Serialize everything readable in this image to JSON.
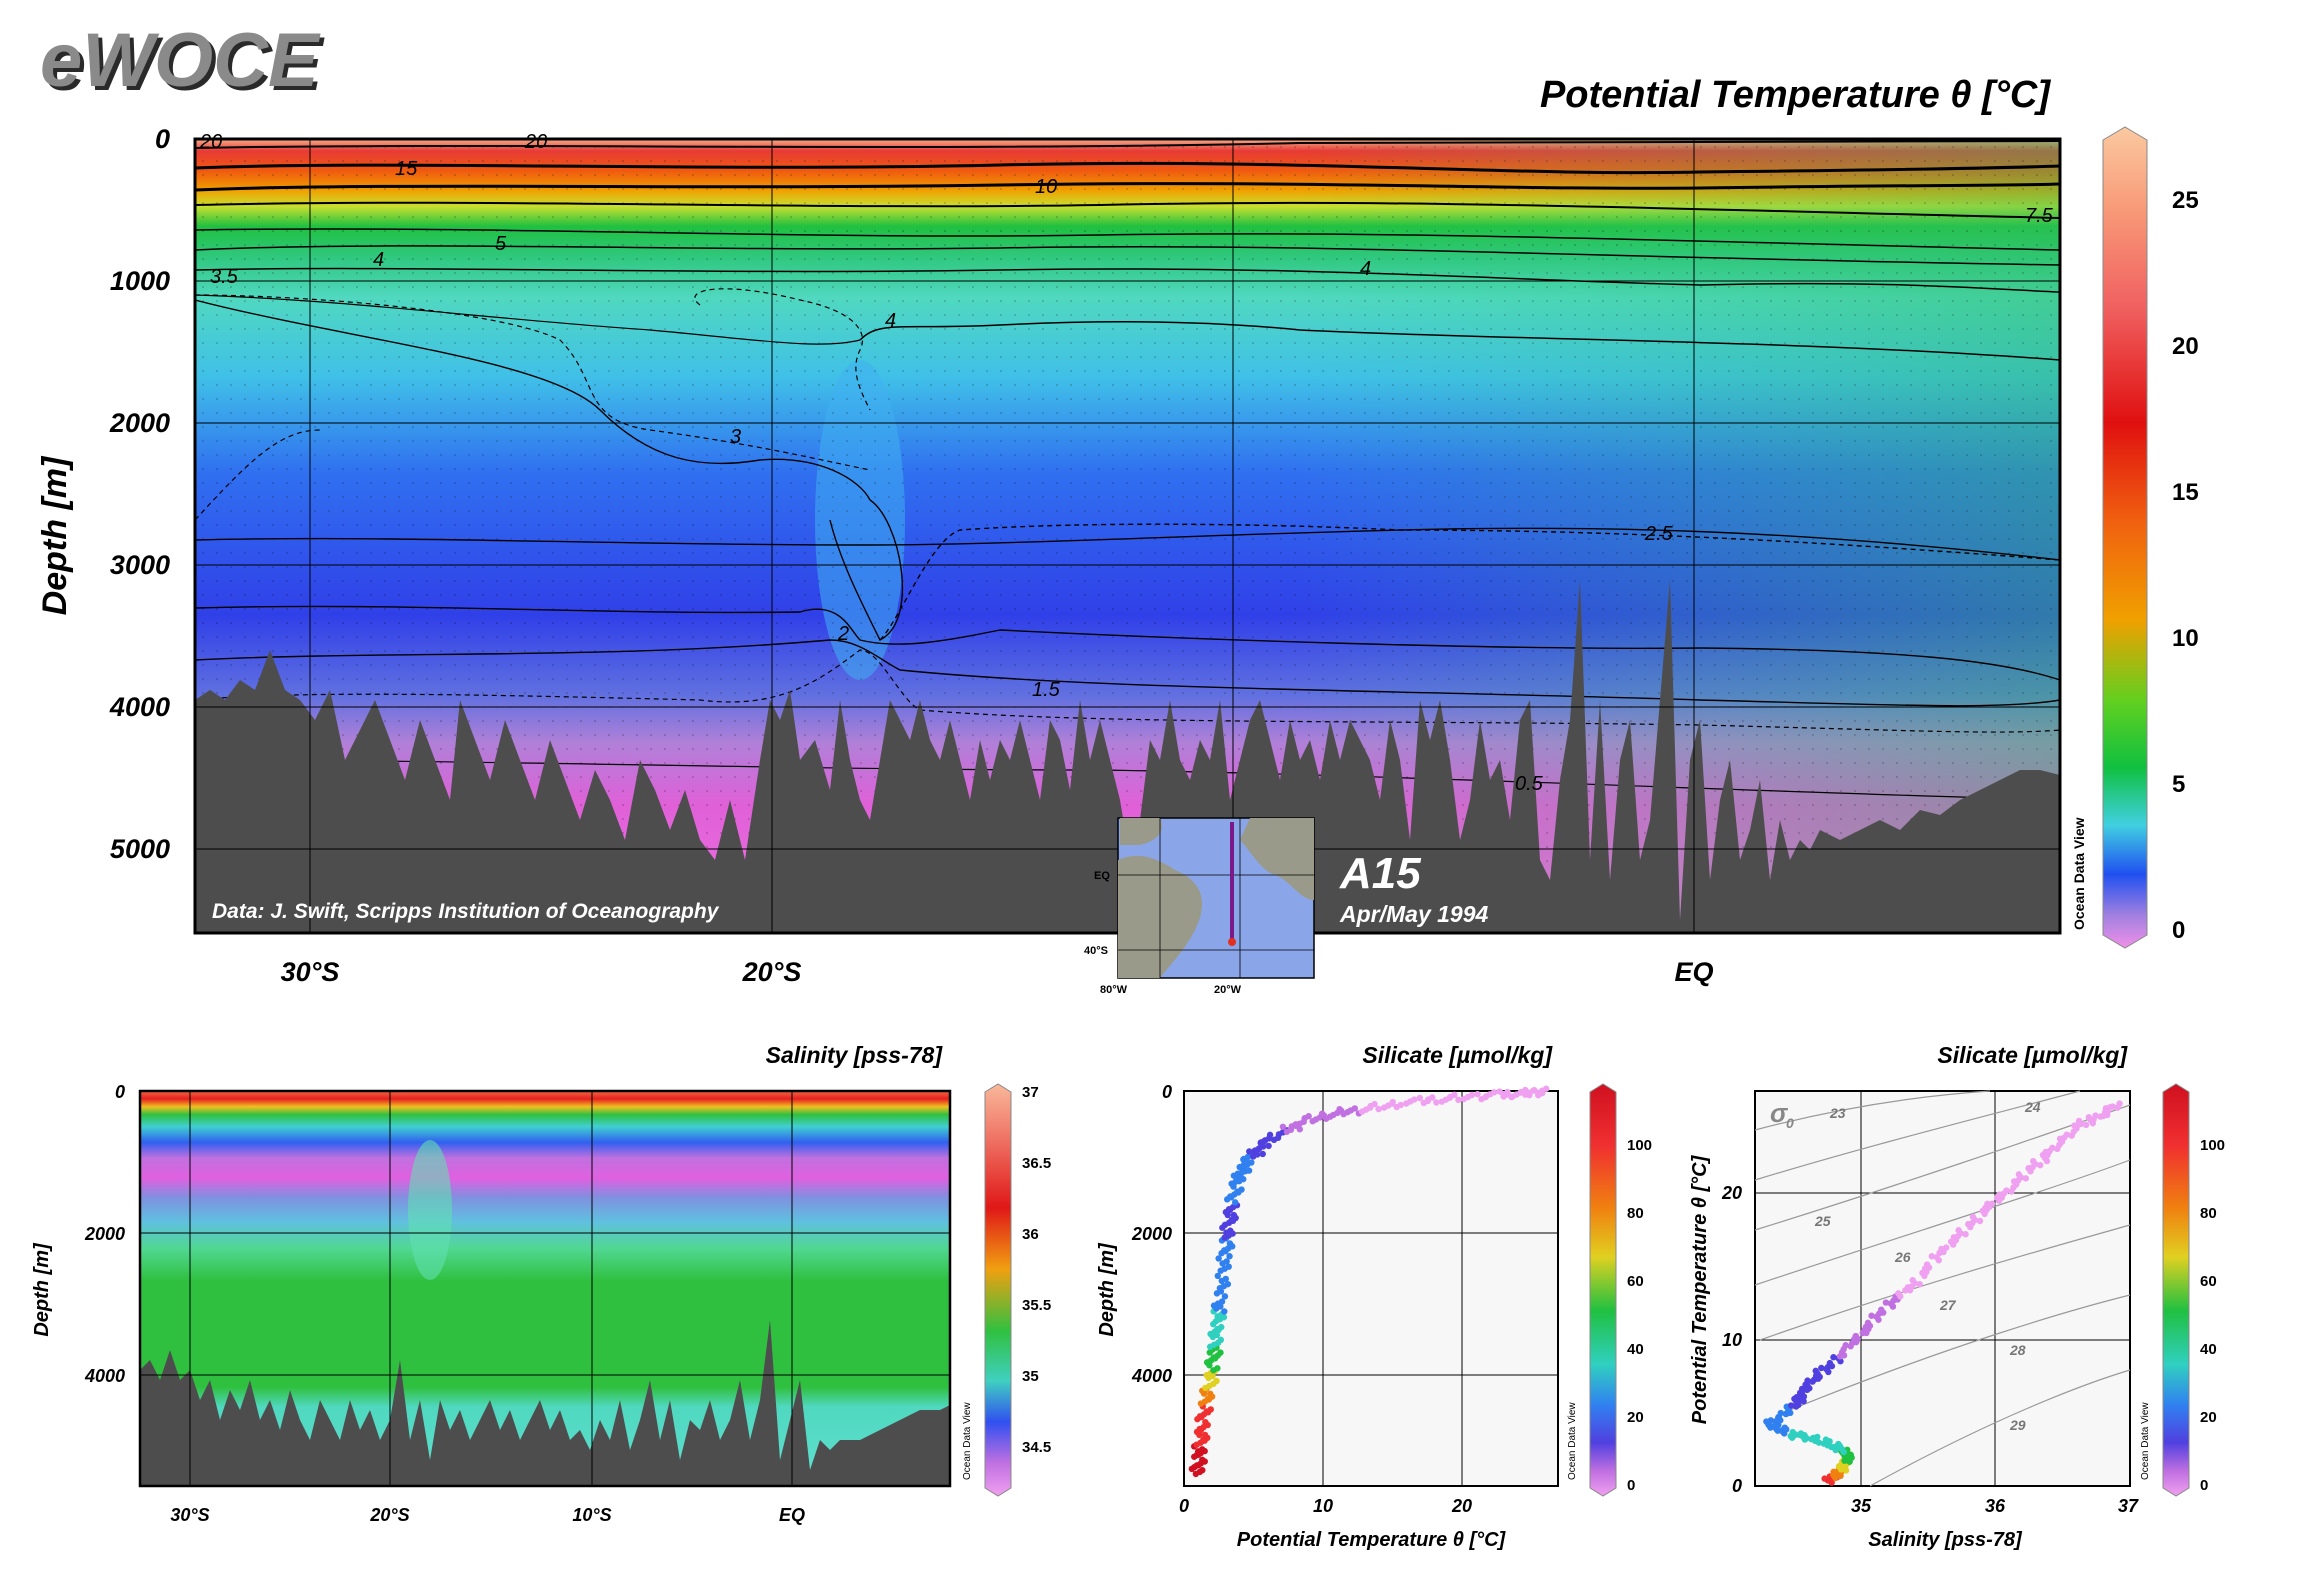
{
  "logo": "eWOCE",
  "main_section": {
    "title": "Potential Temperature θ [°C]",
    "ylabel": "Depth [m]",
    "y_ticks": [
      "0",
      "1000",
      "2000",
      "3000",
      "4000",
      "5000"
    ],
    "x_ticks": [
      "30°S",
      "20°S",
      "EQ"
    ],
    "credit": "Data: J. Swift, Scripps Institution of Oceanography",
    "cruise": "A15",
    "cruise_date": "Apr/May 1994",
    "colorbar_ticks": [
      "25",
      "20",
      "15",
      "10",
      "5",
      "0"
    ],
    "colorbar_label": "Ocean Data View",
    "contour_labels": [
      "20",
      "15",
      "20",
      "10",
      "7.5",
      "5",
      "4",
      "3.5",
      "4",
      "4",
      "3",
      "2.5",
      "2",
      "1.5",
      "0.5"
    ],
    "map": {
      "lat_labels": [
        "EQ",
        "40°S"
      ],
      "lon_labels": [
        "80°W",
        "20°W"
      ]
    }
  },
  "salinity_section": {
    "title": "Salinity [pss-78]",
    "ylabel": "Depth [m]",
    "y_ticks": [
      "0",
      "2000",
      "4000"
    ],
    "x_ticks": [
      "30°S",
      "20°S",
      "10°S",
      "EQ"
    ],
    "colorbar_ticks": [
      "37",
      "36.5",
      "36",
      "35.5",
      "35",
      "34.5"
    ],
    "colorbar_label": "Ocean Data View"
  },
  "profile_plot": {
    "title": "Silicate [µmol/kg]",
    "ylabel": "Depth [m]",
    "xlabel": "Potential Temperature θ [°C]",
    "y_ticks": [
      "0",
      "2000",
      "4000"
    ],
    "x_ticks": [
      "0",
      "10",
      "20"
    ],
    "colorbar_ticks": [
      "100",
      "80",
      "60",
      "40",
      "20",
      "0"
    ],
    "colorbar_label": "Ocean Data View"
  },
  "ts_plot": {
    "title": "Silicate [µmol/kg]",
    "ylabel": "Potential Temperature θ [°C]",
    "xlabel": "Salinity [pss-78]",
    "y_ticks": [
      "0",
      "10",
      "20"
    ],
    "x_ticks": [
      "35",
      "36",
      "37"
    ],
    "sigma_symbol": "σ",
    "sigma_sub": "0",
    "sigma_labels": [
      "23",
      "24",
      "25",
      "26",
      "27",
      "28",
      "29"
    ],
    "colorbar_ticks": [
      "100",
      "80",
      "60",
      "40",
      "20",
      "0"
    ],
    "colorbar_label": "Ocean Data View"
  },
  "chart_data": [
    {
      "type": "heatmap",
      "title": "Potential Temperature θ [°C]",
      "xlabel": "",
      "ylabel": "Depth [m]",
      "x": [
        "30°S",
        "20°S",
        "EQ"
      ],
      "ylim": [
        5600,
        0
      ],
      "color_range": [
        0,
        27
      ],
      "contour_levels": [
        0.5,
        1.5,
        2,
        2.5,
        3,
        3.5,
        4,
        5,
        7.5,
        10,
        15,
        20
      ],
      "isotherm_depths_m": [
        {
          "level": 20,
          "depth": 30
        },
        {
          "level": 15,
          "depth": 200
        },
        {
          "level": 10,
          "depth": 370
        },
        {
          "level": 7.5,
          "depth": 520
        },
        {
          "level": 5,
          "depth": 720
        },
        {
          "level": 4,
          "depth": 870
        },
        {
          "level": 3,
          "depth": 1800
        },
        {
          "level": 2.5,
          "depth": 2900
        },
        {
          "level": 2,
          "depth": 3450
        },
        {
          "level": 1.5,
          "depth": 3800
        },
        {
          "level": 0.5,
          "depth": 4300
        }
      ]
    },
    {
      "type": "heatmap",
      "title": "Salinity [pss-78]",
      "ylabel": "Depth [m]",
      "x": [
        "30°S",
        "20°S",
        "10°S",
        "EQ"
      ],
      "ylim": [
        5600,
        0
      ],
      "color_range": [
        34.3,
        37
      ]
    },
    {
      "type": "scatter",
      "title": "Silicate [µmol/kg]",
      "xlabel": "Potential Temperature θ [°C]",
      "ylabel": "Depth [m]",
      "xlim": [
        0,
        27
      ],
      "ylim": [
        5600,
        0
      ],
      "color_range": [
        0,
        115
      ],
      "points_theta_depth_si": [
        [
          1.0,
          5400,
          120
        ],
        [
          1.2,
          5000,
          115
        ],
        [
          1.5,
          4500,
          100
        ],
        [
          2.0,
          4000,
          70
        ],
        [
          2.3,
          3500,
          45
        ],
        [
          2.6,
          3000,
          35
        ],
        [
          3.0,
          2300,
          28
        ],
        [
          3.3,
          1800,
          22
        ],
        [
          3.8,
          1300,
          30
        ],
        [
          4.5,
          1000,
          28
        ],
        [
          6.0,
          700,
          18
        ],
        [
          9.0,
          400,
          12
        ],
        [
          13.0,
          250,
          8
        ],
        [
          18.0,
          120,
          4
        ],
        [
          23.0,
          50,
          2
        ],
        [
          26.0,
          10,
          1
        ]
      ]
    },
    {
      "type": "scatter",
      "title": "Silicate [µmol/kg]",
      "xlabel": "Salinity [pss-78]",
      "ylabel": "Potential Temperature θ [°C]",
      "xlim": [
        34.2,
        37
      ],
      "ylim": [
        0,
        27
      ],
      "color_range": [
        0,
        115
      ],
      "points_S_theta_si": [
        [
          34.75,
          0.3,
          110
        ],
        [
          34.85,
          1.2,
          80
        ],
        [
          34.9,
          2.0,
          60
        ],
        [
          34.8,
          2.8,
          45
        ],
        [
          34.5,
          3.5,
          40
        ],
        [
          34.3,
          4.2,
          30
        ],
        [
          34.5,
          5.5,
          25
        ],
        [
          34.6,
          7.0,
          20
        ],
        [
          34.85,
          9.0,
          15
        ],
        [
          35.1,
          11.5,
          10
        ],
        [
          35.4,
          14.0,
          7
        ],
        [
          35.7,
          17.0,
          5
        ],
        [
          36.0,
          19.5,
          3
        ],
        [
          36.3,
          22.0,
          2
        ],
        [
          36.6,
          24.5,
          1
        ],
        [
          36.9,
          26.0,
          1
        ]
      ]
    }
  ]
}
